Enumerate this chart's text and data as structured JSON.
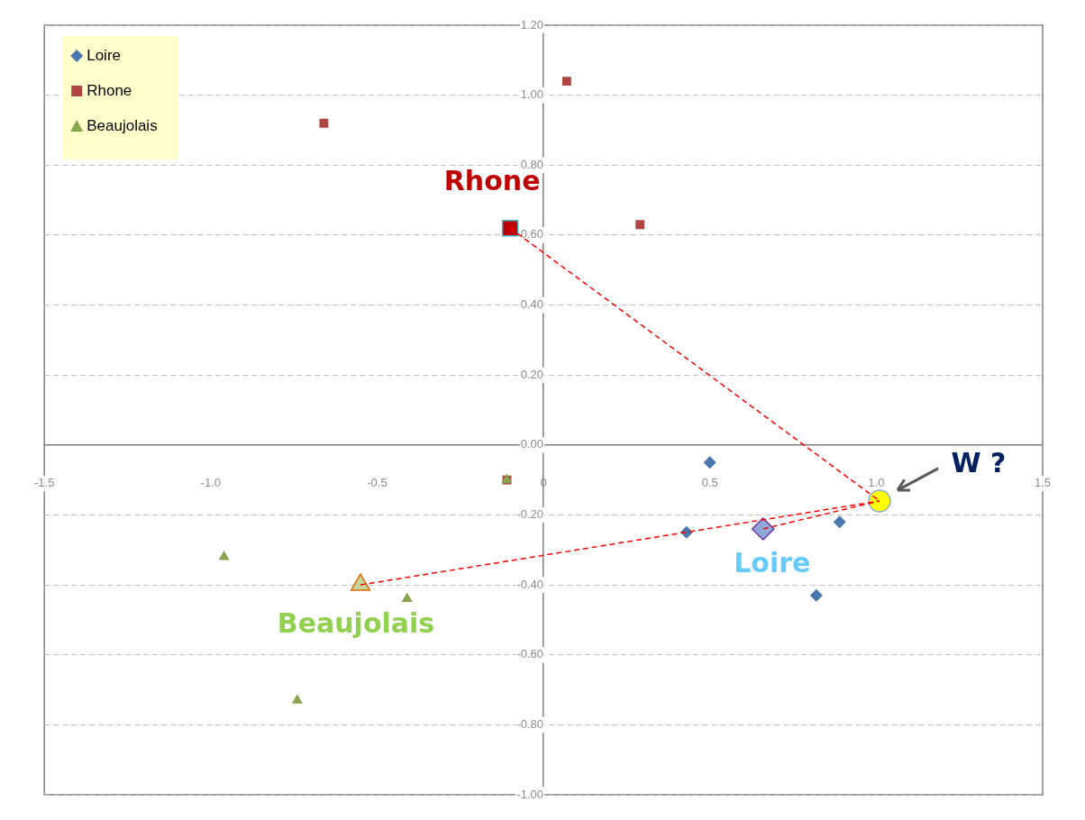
{
  "chart_data": {
    "type": "scatter",
    "xlim": [
      -1.5,
      1.5
    ],
    "xticks": [
      {
        "value": -1.5,
        "label": "-1.5"
      },
      {
        "value": -1,
        "label": "-1.0"
      },
      {
        "value": -0.5,
        "label": "-0.5"
      },
      0,
      0.5,
      {
        "value": 1,
        "label": "1.0"
      },
      1.5
    ],
    "ylim": [
      -1,
      1.2
    ],
    "yticks": [
      {
        "value": -1,
        "label": "-1.00"
      },
      {
        "value": -0.8,
        "label": "-0.80"
      },
      {
        "value": -0.6,
        "label": "-0.60"
      },
      {
        "value": -0.4,
        "label": "-0.40"
      },
      {
        "value": -0.2,
        "label": "-0.20"
      },
      {
        "value": 0,
        "label": "0.00"
      },
      {
        "value": 0.2,
        "label": "0.20"
      },
      {
        "value": 0.4,
        "label": "0.40"
      },
      {
        "value": 0.6,
        "label": "0.60"
      },
      {
        "value": 0.8,
        "label": "0.80"
      },
      {
        "value": 1,
        "label": "1.00"
      },
      {
        "value": 1.2,
        "label": "1.20"
      }
    ],
    "grid": "y",
    "legend": "top left",
    "series": [
      {
        "name": "Loire",
        "color": "#4a76ae",
        "marker": "diamond",
        "x": [
          0.5,
          0.43,
          0.89,
          0.82
        ],
        "values": [
          -0.05,
          -0.25,
          -0.22,
          -0.43
        ]
      },
      {
        "name": "Rhone",
        "color": "#b04543",
        "marker": "square",
        "x": [
          -0.66,
          0.07,
          0.29,
          -0.11
        ],
        "values": [
          0.92,
          1.04,
          0.63,
          -0.1
        ]
      },
      {
        "name": "Beaujolais",
        "color": "#88a54e",
        "marker": "triangle",
        "x": [
          -0.11,
          -0.96,
          -0.41,
          -0.74
        ],
        "values": [
          -0.1,
          -0.32,
          -0.44,
          -0.73
        ]
      },
      {
        "type": "line",
        "color": "#ff0000",
        "marker": "none",
        "line_style": "dashed",
        "x": [
          -0.1,
          1.01
        ],
        "values": [
          0.62,
          -0.16
        ]
      },
      {
        "type": "line",
        "color": "#ff0000",
        "marker": "none",
        "line_style": "dashed",
        "x": [
          0.66,
          1.01
        ],
        "values": [
          -0.24,
          -0.16
        ]
      },
      {
        "type": "line",
        "color": "#ff0000",
        "marker": "none",
        "line_style": "dashed",
        "x": [
          -0.55,
          1.01
        ],
        "values": [
          -0.4,
          -0.16
        ]
      },
      {
        "color": "#c00000",
        "marker": "square",
        "x": [
          -0.1
        ],
        "values": [
          0.62
        ]
      },
      {
        "color": "#8eaadb",
        "marker": "diamond",
        "x": [
          0.66
        ],
        "values": [
          -0.24
        ]
      },
      {
        "color": "#c3d69b",
        "marker": "triangle",
        "x": [
          -0.55
        ],
        "values": [
          -0.4
        ]
      },
      {
        "color": "#ffff00",
        "marker": "circle",
        "x": [
          1.01
        ],
        "values": [
          -0.16
        ]
      }
    ],
    "annotations": [
      {
        "text": "Rhone",
        "x": -0.1,
        "y": 0.62
      },
      {
        "text": "Loire",
        "x": 0.66,
        "y": -0.24
      },
      {
        "text": "Beaujolais",
        "x": -0.55,
        "y": -0.4
      },
      {
        "text": "W ?",
        "x": 1.01,
        "y": -0.16
      }
    ]
  }
}
